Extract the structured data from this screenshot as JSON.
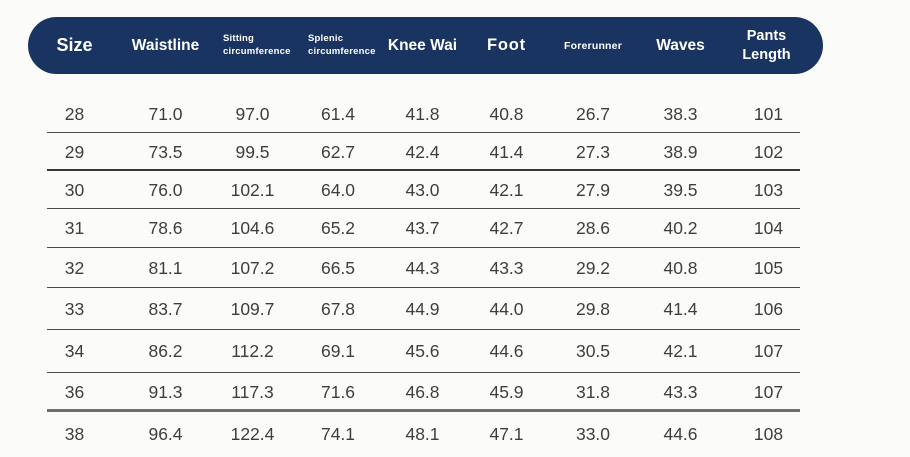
{
  "colors": {
    "header_bg": "#1a3462",
    "header_text": "#ffffff",
    "body_text": "#3e3e3e",
    "separator_line": "#4c4c4c",
    "background": "#fbfbfa"
  },
  "chart_data": {
    "type": "table",
    "columns": [
      "Size",
      "Waistline",
      "Sitting circumference",
      "Splenic circumference",
      "Knee Wai",
      "Foot",
      "Forerunner",
      "Waves",
      "Pants Length"
    ],
    "rows": [
      [
        "28",
        "71.0",
        "97.0",
        "61.4",
        "41.8",
        "40.8",
        "26.7",
        "38.3",
        "101"
      ],
      [
        "29",
        "73.5",
        "99.5",
        "62.7",
        "42.4",
        "41.4",
        "27.3",
        "38.9",
        "102"
      ],
      [
        "30",
        "76.0",
        "102.1",
        "64.0",
        "43.0",
        "42.1",
        "27.9",
        "39.5",
        "103"
      ],
      [
        "31",
        "78.6",
        "104.6",
        "65.2",
        "43.7",
        "42.7",
        "28.6",
        "40.2",
        "104"
      ],
      [
        "32",
        "81.1",
        "107.2",
        "66.5",
        "44.3",
        "43.3",
        "29.2",
        "40.8",
        "105"
      ],
      [
        "33",
        "83.7",
        "109.7",
        "67.8",
        "44.9",
        "44.0",
        "29.8",
        "41.4",
        "106"
      ],
      [
        "34",
        "86.2",
        "112.2",
        "69.1",
        "45.6",
        "44.6",
        "30.5",
        "42.1",
        "107"
      ],
      [
        "36",
        "91.3",
        "117.3",
        "71.6",
        "46.8",
        "45.9",
        "31.8",
        "43.3",
        "107"
      ],
      [
        "38",
        "96.4",
        "122.4",
        "74.1",
        "48.1",
        "47.1",
        "33.0",
        "44.6",
        "108"
      ]
    ]
  }
}
